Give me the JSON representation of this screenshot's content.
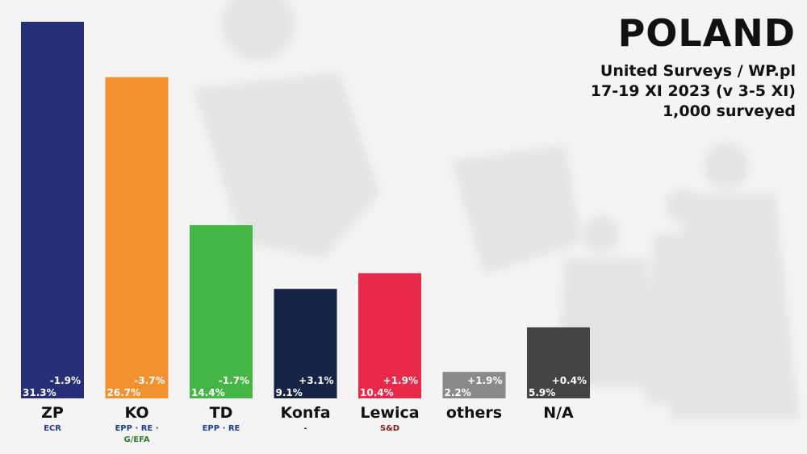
{
  "header": {
    "title": "POLAND",
    "lines": [
      "United Surveys / WP.pl",
      "17-19 XI 2023 (v 3-5 XI)",
      "1,000 surveyed"
    ]
  },
  "chart_data": {
    "type": "bar",
    "title": "POLAND",
    "categories": [
      "ZP",
      "KO",
      "TD",
      "Konfa",
      "Lewica",
      "others",
      "N/A"
    ],
    "values": [
      31.3,
      26.7,
      14.4,
      9.1,
      10.4,
      2.2,
      5.9
    ],
    "value_labels": [
      "31.3%",
      "26.7%",
      "14.4%",
      "9.1%",
      "10.4%",
      "2.2%",
      "5.9%"
    ],
    "change_labels": [
      "-1.9%",
      "-3.7%",
      "-1.7%",
      "+3.1%",
      "+1.9%",
      "+1.9%",
      "+0.4%"
    ],
    "groups": [
      [
        "ECR"
      ],
      [
        "EPP · RE ·",
        "G/EFA"
      ],
      [
        "EPP · RE"
      ],
      [
        "-"
      ],
      [
        "S&D"
      ],
      [],
      []
    ],
    "colors": [
      "#262f78",
      "#f39130",
      "#43b645",
      "#152445",
      "#e8294a",
      "#8a8a8a",
      "#444444"
    ],
    "group_colors": [
      "#1f3f8f",
      "#1f3f8f",
      "#1f3f8f",
      "#333333",
      "#8b1a1a",
      "#333333",
      "#333333"
    ],
    "ylim": [
      0,
      31.3
    ]
  }
}
